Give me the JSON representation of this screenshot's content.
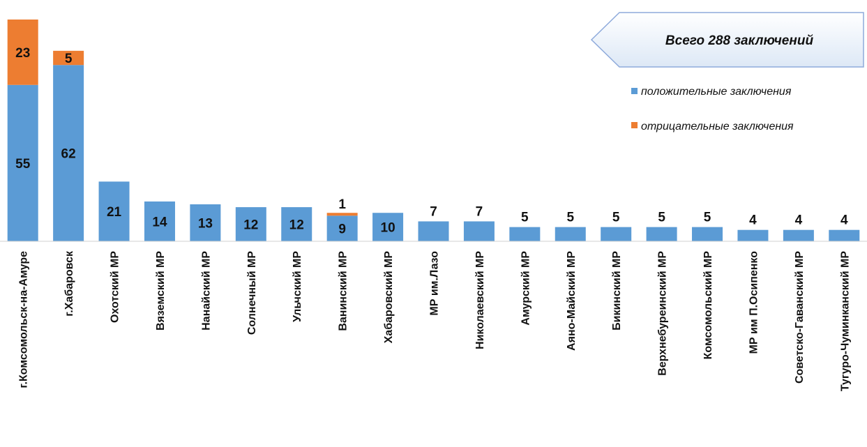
{
  "chart_data": {
    "type": "bar",
    "stacked": true,
    "categories": [
      "г.Комсомольск-на-Амуре",
      "г.Хабаровск",
      "Охотский МР",
      "Вяземский МР",
      "Нанайский МР",
      "Солнечный МР",
      "Ульчский МР",
      "Ванинский МР",
      "Хабаровский МР",
      "МР им.Лазо",
      "Николаевский МР",
      "Амурский МР",
      "Аяно-Майский МР",
      "Бикинский МР",
      "Верхнебуреинский МР",
      "Комсомольский МР",
      "МР им П.Осипенко",
      "Советско-Гаванский МР",
      "Тугуро-Чуминканский МР"
    ],
    "series": [
      {
        "name": "положительные заключения",
        "color": "#5b9bd5",
        "values": [
          55,
          62,
          21,
          14,
          13,
          12,
          12,
          9,
          10,
          7,
          7,
          5,
          5,
          5,
          5,
          5,
          4,
          4,
          4
        ]
      },
      {
        "name": "отрицательные заключения",
        "color": "#ed7d31",
        "values": [
          23,
          5,
          0,
          0,
          0,
          0,
          0,
          1,
          0,
          0,
          0,
          0,
          0,
          0,
          0,
          0,
          0,
          0,
          0
        ]
      }
    ],
    "ylim": [
      0,
      78
    ],
    "grid": false,
    "legend_position": "right",
    "callout": "Всего 288 заключений"
  }
}
